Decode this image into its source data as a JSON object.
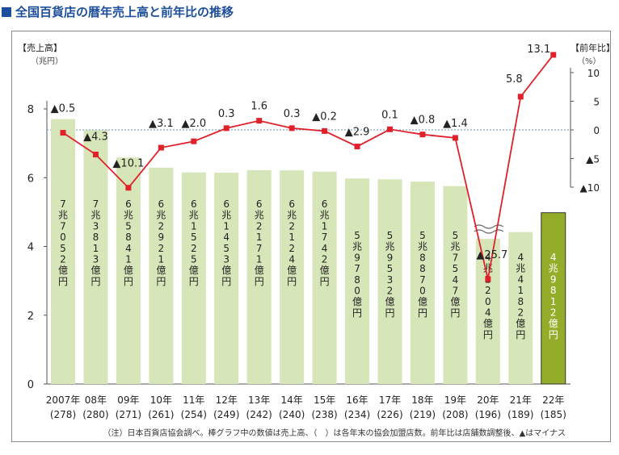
{
  "title": "全国百貨店の暦年売上高と前年比の推移",
  "note": "（注）日本百貨店協会調べ。棒グラフ中の数値は売上高、（　）は各年末の協会加盟店数。前年比は店舗数調整後、▲はマイナス",
  "chart_data": {
    "type": "bar",
    "y_axis_left": {
      "title": "【売上高】",
      "unit": "（兆円）",
      "range": [
        0,
        8
      ],
      "ticks": [
        "0",
        "2",
        "4",
        "6",
        "8"
      ]
    },
    "y_axis_right": {
      "title": "【前年比】",
      "unit": "（%）",
      "range": [
        -10,
        10
      ],
      "ticks": [
        "10",
        "5",
        "0",
        "▲5",
        "▲10"
      ]
    },
    "categories": [
      "2007年",
      "08年",
      "09年",
      "10年",
      "11年",
      "12年",
      "13年",
      "14年",
      "15年",
      "16年",
      "17年",
      "18年",
      "19年",
      "20年",
      "21年",
      "22年"
    ],
    "store_counts": [
      "(278)",
      "(280)",
      "(271)",
      "(261)",
      "(254)",
      "(249)",
      "(242)",
      "(240)",
      "(238)",
      "(234)",
      "(226)",
      "(219)",
      "(208)",
      "(196)",
      "(189)",
      "(185)"
    ],
    "sales_values": [
      7.7052,
      7.3813,
      6.5841,
      6.2921,
      6.1525,
      6.1453,
      6.2171,
      6.2124,
      6.1742,
      5.978,
      5.9532,
      5.887,
      5.7547,
      4.2204,
      4.4182,
      4.9812
    ],
    "sales_labels": [
      "7兆7052億円",
      "7兆3813億円",
      "6兆5841億円",
      "6兆2921億円",
      "6兆1525億円",
      "6兆1453億円",
      "6兆2171億円",
      "6兆2124億円",
      "6兆1742億円",
      "5兆9780億円",
      "5兆9532億円",
      "5兆8870億円",
      "5兆7547億円",
      "4兆2204億円",
      "4兆4182億円",
      "4兆9812億円"
    ],
    "yoy_values": [
      -0.5,
      -4.3,
      -10.1,
      -3.1,
      -2.0,
      0.3,
      1.6,
      0.3,
      -0.2,
      -2.9,
      0.1,
      -0.8,
      -1.4,
      -25.7,
      5.8,
      13.1
    ],
    "yoy_labels": [
      "▲0.5",
      "▲4.3",
      "▲10.1",
      "▲3.1",
      "▲2.0",
      "0.3",
      "1.6",
      "0.3",
      "▲0.2",
      "▲2.9",
      "0.1",
      "▲0.8",
      "▲1.4",
      "▲25.7",
      "5.8",
      "13.1"
    ],
    "colors": {
      "bar": "#d7e6b9",
      "bar_highlight": "#93ad2a",
      "line": "#e0202a",
      "title": "#1c4e9c"
    }
  }
}
